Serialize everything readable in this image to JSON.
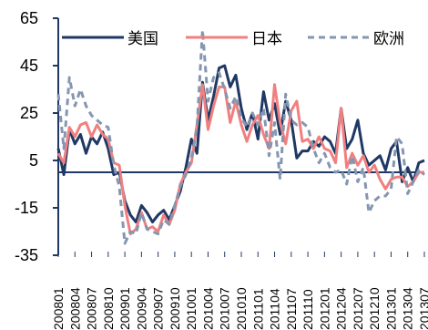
{
  "chart_data": {
    "type": "line",
    "title": "",
    "xlabel": "",
    "ylabel": "",
    "ylim": [
      -35,
      65
    ],
    "yticks": [
      65,
      45,
      25,
      5,
      -15,
      -35
    ],
    "grid": false,
    "legend": "top",
    "x": [
      "200801",
      "200802",
      "200803",
      "200804",
      "200805",
      "200806",
      "200807",
      "200808",
      "200809",
      "200810",
      "200811",
      "200812",
      "200901",
      "200902",
      "200903",
      "200904",
      "200905",
      "200906",
      "200907",
      "200908",
      "200909",
      "200910",
      "200911",
      "200912",
      "201001",
      "201002",
      "201003",
      "201004",
      "201005",
      "201006",
      "201007",
      "201008",
      "201009",
      "201010",
      "201011",
      "201012",
      "201101",
      "201102",
      "201103",
      "201104",
      "201105",
      "201106",
      "201107",
      "201108",
      "201109",
      "201110",
      "201111",
      "201112",
      "201201",
      "201202",
      "201203",
      "201204",
      "201205",
      "201206",
      "201207",
      "201208",
      "201209",
      "201210",
      "201211",
      "201212",
      "201301",
      "201302",
      "201303",
      "201304",
      "201305",
      "201306",
      "201307"
    ],
    "xtick_labels": [
      "200801",
      "200804",
      "200807",
      "200810",
      "200901",
      "200904",
      "200907",
      "200910",
      "201001",
      "201004",
      "201007",
      "201010",
      "201101",
      "201104",
      "201107",
      "201110",
      "201201",
      "201204",
      "201207",
      "201210",
      "201301",
      "201304",
      "201307"
    ],
    "series": [
      {
        "name": "美国",
        "color": "#1f3864",
        "dash": "solid",
        "values": [
          10,
          -1,
          18,
          12,
          16,
          8,
          15,
          12,
          17,
          10,
          -1,
          0,
          -12,
          -18,
          -21,
          -14,
          -17,
          -21,
          -18,
          -16,
          -20,
          -14,
          -8,
          2,
          14,
          8,
          38,
          22,
          32,
          44,
          45,
          36,
          41,
          27,
          18,
          25,
          14,
          34,
          22,
          29,
          16,
          30,
          22,
          6,
          9,
          9,
          13,
          11,
          15,
          13,
          8,
          27,
          10,
          14,
          22,
          8,
          3,
          5,
          7,
          1,
          10,
          13,
          -4,
          2,
          -4,
          4,
          5
        ]
      },
      {
        "name": "日本",
        "color": "#f08080",
        "dash": "solid",
        "values": [
          8,
          4,
          19,
          15,
          20,
          21,
          15,
          20,
          16,
          14,
          4,
          3,
          -14,
          -26,
          -24,
          -17,
          -24,
          -23,
          -25,
          -18,
          -22,
          -16,
          -5,
          0,
          4,
          20,
          37,
          18,
          28,
          36,
          36,
          21,
          30,
          20,
          13,
          20,
          24,
          16,
          10,
          37,
          21,
          12,
          26,
          30,
          13,
          14,
          10,
          15,
          10,
          9,
          4,
          27,
          2,
          8,
          3,
          7,
          0,
          3,
          -3,
          -7,
          -3,
          -2,
          -2,
          -6,
          -4,
          0,
          0
        ]
      },
      {
        "name": "欧洲",
        "color": "#8496b0",
        "dash": "dashed",
        "values": [
          33,
          10,
          40,
          28,
          35,
          28,
          24,
          22,
          20,
          19,
          3,
          -6,
          -30,
          -25,
          -26,
          -17,
          -24,
          -25,
          -26,
          -20,
          -22,
          -14,
          -6,
          -1,
          6,
          19,
          60,
          30,
          40,
          42,
          35,
          27,
          32,
          23,
          19,
          25,
          20,
          27,
          7,
          21,
          -3,
          33,
          22,
          20,
          21,
          19,
          10,
          4,
          8,
          2,
          0,
          1,
          -5,
          7,
          -4,
          2,
          -17,
          -12,
          -10,
          -10,
          -7,
          15,
          12,
          -9,
          -4,
          1,
          -1
        ]
      }
    ]
  }
}
